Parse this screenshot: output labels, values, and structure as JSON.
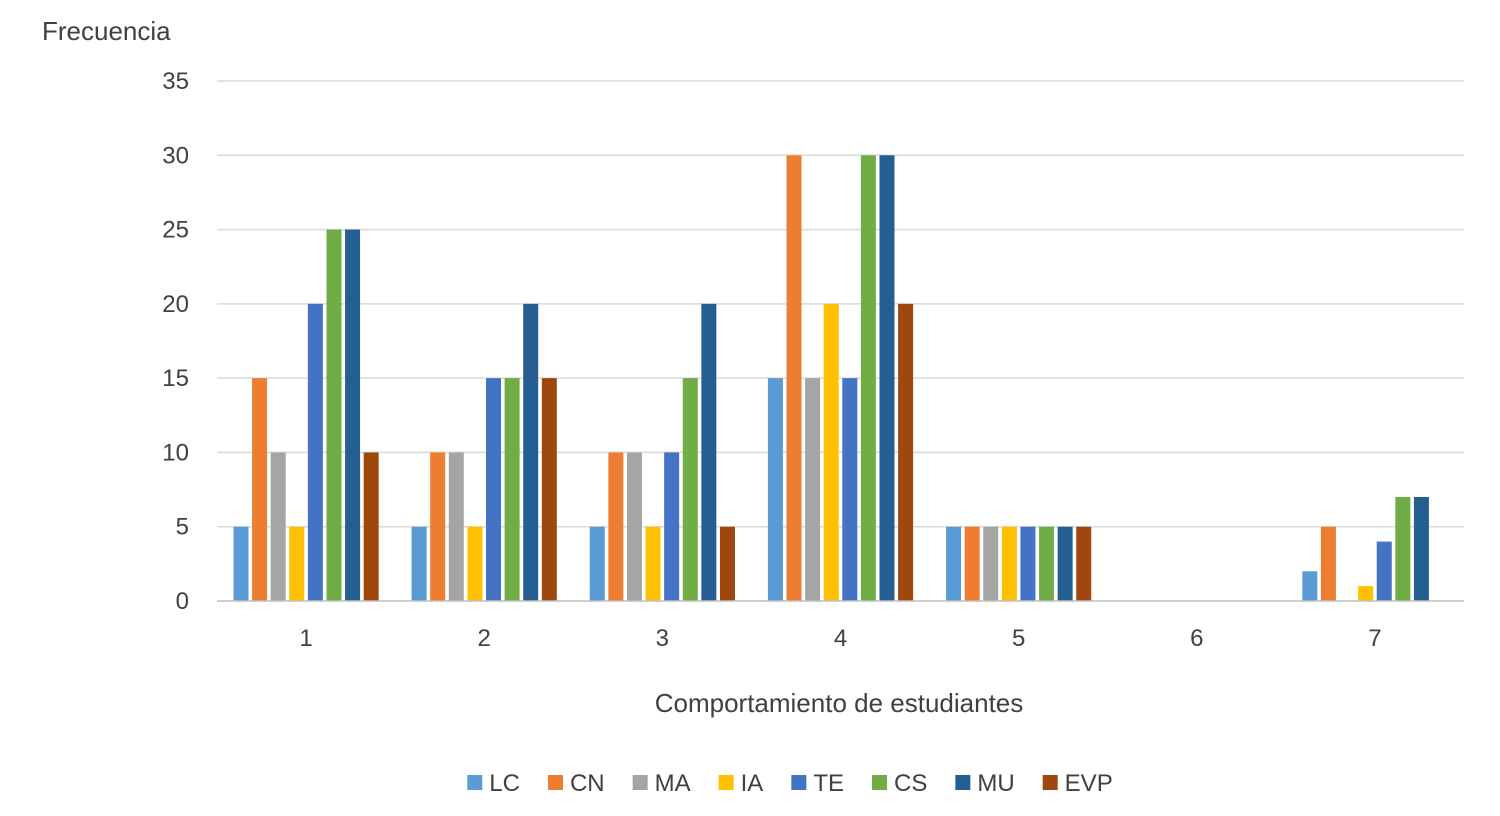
{
  "chart_data": {
    "type": "bar",
    "title": "",
    "ylabel": "Frecuencia",
    "xlabel": "Comportamiento de estudiantes",
    "ylim": [
      0,
      35
    ],
    "yticks": [
      0,
      5,
      10,
      15,
      20,
      25,
      30,
      35
    ],
    "grid": true,
    "legend_position": "bottom",
    "categories": [
      "1",
      "2",
      "3",
      "4",
      "5",
      "6",
      "7"
    ],
    "series": [
      {
        "name": "LC",
        "color": "#5B9BD5",
        "values": [
          5,
          5,
          5,
          15,
          5,
          0,
          2
        ]
      },
      {
        "name": "CN",
        "color": "#ED7D31",
        "values": [
          15,
          10,
          10,
          30,
          5,
          0,
          5
        ]
      },
      {
        "name": "MA",
        "color": "#A5A5A5",
        "values": [
          10,
          10,
          10,
          15,
          5,
          0,
          0
        ]
      },
      {
        "name": "IA",
        "color": "#FFC000",
        "values": [
          5,
          5,
          5,
          20,
          5,
          0,
          1
        ]
      },
      {
        "name": "TE",
        "color": "#4472C4",
        "values": [
          20,
          15,
          10,
          15,
          5,
          0,
          4
        ]
      },
      {
        "name": "CS",
        "color": "#70AD47",
        "values": [
          25,
          15,
          15,
          30,
          5,
          0,
          7
        ]
      },
      {
        "name": "MU",
        "color": "#255E91",
        "values": [
          25,
          20,
          20,
          30,
          5,
          0,
          7
        ]
      },
      {
        "name": "EVP",
        "color": "#9E480E",
        "values": [
          10,
          15,
          5,
          20,
          5,
          0,
          0
        ]
      }
    ]
  }
}
